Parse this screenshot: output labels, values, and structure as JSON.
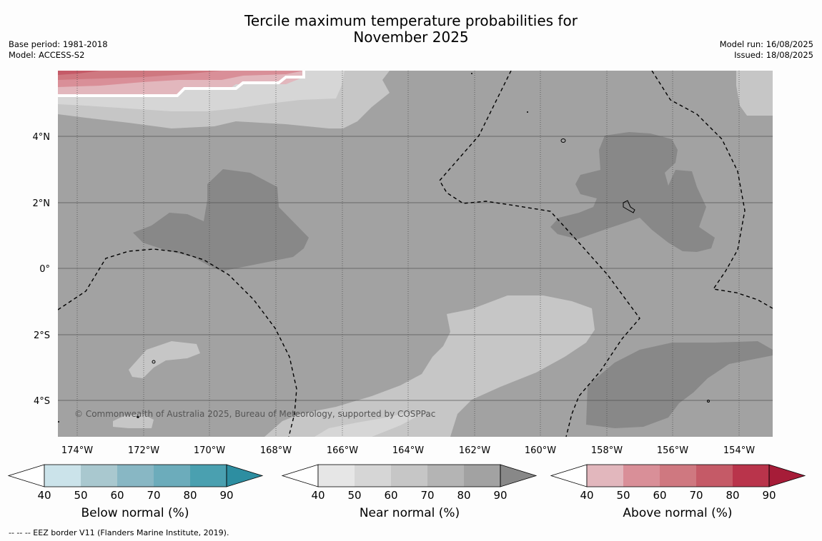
{
  "title_line1": "Tercile maximum temperature probabilities for",
  "title_line2": "November 2025",
  "base_period": "Base period: 1981-2018",
  "model": "Model: ACCESS-S2",
  "model_run": "Model run: 16/08/2025",
  "issued": "Issued: 18/08/2025",
  "copyright": "© Commonwealth of Australia 2025, Bureau of Meteorology, supported by COSPPac",
  "lon_labels": [
    "174°W",
    "172°W",
    "170°W",
    "168°W",
    "166°W",
    "164°W",
    "162°W",
    "160°W",
    "158°W",
    "156°W",
    "154°W"
  ],
  "lat_labels": [
    "4°N",
    "2°N",
    "0°",
    "2°S",
    "4°S"
  ],
  "colorbars": [
    {
      "label": "Below normal (%)",
      "ticks": [
        "40",
        "50",
        "60",
        "70",
        "80",
        "90"
      ],
      "colors": [
        "#cbe3ea",
        "#a9c8cf",
        "#88b7c4",
        "#6cacbb",
        "#4aa0b0",
        "#2d8ea1"
      ]
    },
    {
      "label": "Near normal (%)",
      "ticks": [
        "40",
        "50",
        "60",
        "70",
        "80",
        "90"
      ],
      "colors": [
        "#e6e6e6",
        "#d6d6d6",
        "#c6c6c6",
        "#b4b4b4",
        "#a2a2a2",
        "#888888"
      ]
    },
    {
      "label": "Above normal (%)",
      "ticks": [
        "40",
        "50",
        "60",
        "70",
        "80",
        "90"
      ],
      "colors": [
        "#e2b7bd",
        "#d98f98",
        "#cf7880",
        "#c55a67",
        "#b9344b",
        "#a61c38"
      ]
    }
  ],
  "eez_note": "--  --  -- EEZ border V11 (Flanders Marine Institute, 2019)."
}
